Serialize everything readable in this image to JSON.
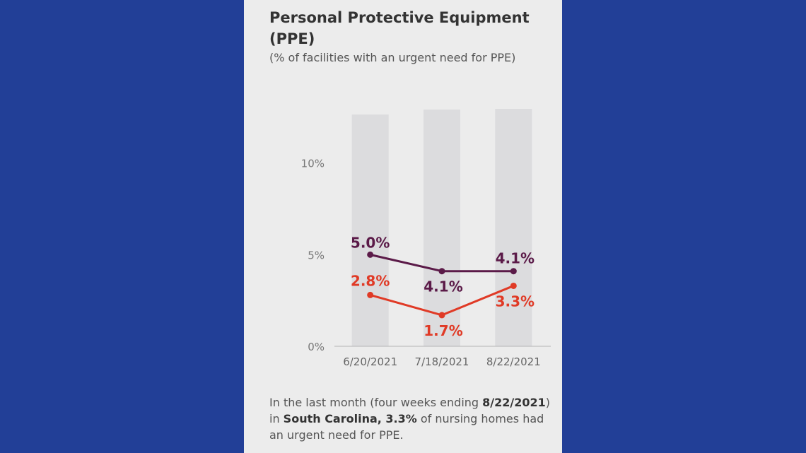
{
  "card": {
    "title": "Personal Protective Equipment (PPE)",
    "subtitle": "(% of facilities with an urgent need for PPE)",
    "footnote": {
      "part1": "In the last month (four weeks ending ",
      "date": "8/22/2021",
      "part2": ") in ",
      "state": "South Carolina, 3.3%",
      "part3": " of nursing homes had an urgent need for PPE."
    }
  },
  "chart_data": {
    "type": "line",
    "categories": [
      "6/20/2021",
      "7/18/2021",
      "8/22/2021"
    ],
    "y_ticks": [
      0,
      5,
      10
    ],
    "y_tick_labels": [
      "0%",
      "5%",
      "10%"
    ],
    "ylim": [
      0,
      13.5
    ],
    "series": [
      {
        "color": "#5b1a48",
        "values": [
          5.0,
          4.1,
          4.1
        ],
        "labels": [
          "5.0%",
          "4.1%",
          "4.1%"
        ]
      },
      {
        "color": "#e03a26",
        "values": [
          2.8,
          1.7,
          3.3
        ],
        "labels": [
          "2.8%",
          "1.7%",
          "3.3%"
        ]
      }
    ],
    "background_bars": true,
    "grid": false
  }
}
